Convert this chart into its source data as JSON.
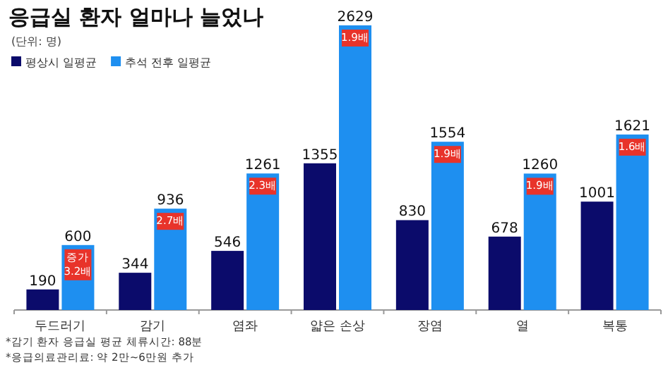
{
  "chart_data": {
    "type": "bar",
    "title": "응급실 환자 얼마나 늘었나",
    "subtitle": "(단위: 명)",
    "categories": [
      "두드러기",
      "감기",
      "염좌",
      "얇은 손상",
      "장염",
      "열",
      "복통"
    ],
    "series": [
      {
        "name": "평상시 일평균",
        "color": "#0b0b6b",
        "values": [
          190,
          344,
          546,
          1355,
          830,
          678,
          1001
        ]
      },
      {
        "name": "추석 전후 일평균",
        "color": "#1e8ff0",
        "values": [
          600,
          936,
          1261,
          2629,
          1554,
          1260,
          1621
        ]
      }
    ],
    "data_labels": true,
    "legend": "top left",
    "annotations": [
      {
        "text": "증가 3.2배",
        "x": "두드러기",
        "y": 600
      },
      {
        "text": "2.7배",
        "x": "감기",
        "y": 936
      },
      {
        "text": "2.3배",
        "x": "염좌",
        "y": 1261
      },
      {
        "text": "1.9배",
        "x": "얇은 손상",
        "y": 2629
      },
      {
        "text": "1.9배",
        "x": "장염",
        "y": 1554
      },
      {
        "text": "1.9배",
        "x": "열",
        "y": 1260
      },
      {
        "text": "1.6배",
        "x": "복통",
        "y": 1621
      },
      "*감기 환자 응급실 평균 체류시간: 88분",
      "*응급의료관리료: 약 2만~6만원 추가"
    ]
  }
}
